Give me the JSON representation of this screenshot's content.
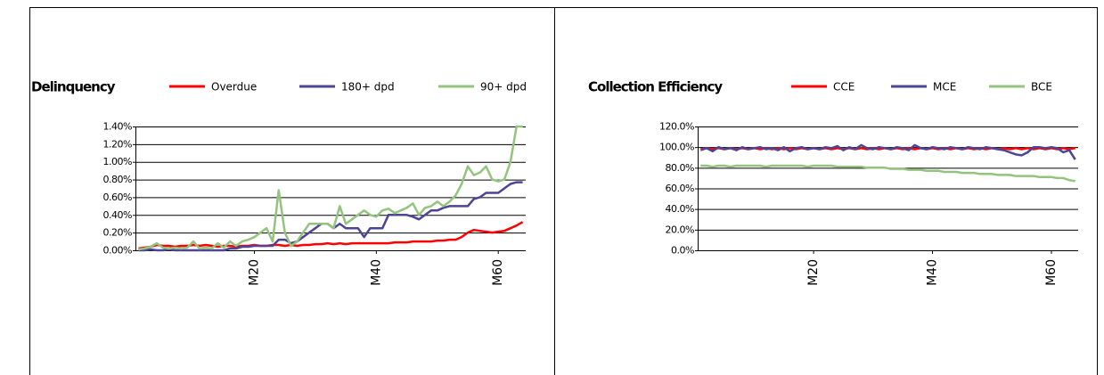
{
  "chart_data": [
    {
      "type": "line",
      "title": "Delinquency",
      "categories": [
        null,
        null,
        null,
        null,
        null,
        null,
        null,
        null,
        null,
        null,
        null,
        null,
        null,
        null,
        null,
        null,
        null,
        null,
        null,
        "M20",
        null,
        null,
        null,
        null,
        null,
        null,
        null,
        null,
        null,
        null,
        null,
        null,
        null,
        null,
        null,
        null,
        null,
        null,
        null,
        "M40",
        null,
        null,
        null,
        null,
        null,
        null,
        null,
        null,
        null,
        null,
        null,
        null,
        null,
        null,
        null,
        null,
        null,
        null,
        null,
        "M60",
        null,
        null,
        null,
        null
      ],
      "series": [
        {
          "name": "Overdue",
          "color": "#ff0000",
          "values": [
            0.02,
            0.03,
            0.04,
            0.06,
            0.05,
            0.05,
            0.04,
            0.05,
            0.05,
            0.06,
            0.05,
            0.06,
            0.05,
            0.04,
            0.05,
            0.05,
            0.04,
            0.05,
            0.05,
            0.06,
            0.05,
            0.05,
            0.06,
            0.06,
            0.05,
            0.06,
            0.05,
            0.06,
            0.06,
            0.07,
            0.07,
            0.08,
            0.07,
            0.08,
            0.07,
            0.08,
            0.08,
            0.08,
            0.08,
            0.08,
            0.08,
            0.08,
            0.09,
            0.09,
            0.09,
            0.1,
            0.1,
            0.1,
            0.1,
            0.11,
            0.11,
            0.12,
            0.12,
            0.15,
            0.2,
            0.23,
            0.22,
            0.21,
            0.2,
            0.21,
            0.22,
            0.25,
            0.28,
            0.32
          ]
        },
        {
          "name": "180+ dpd",
          "color": "#4b4497",
          "values": [
            0,
            0,
            0.01,
            0,
            0,
            0.01,
            0,
            0,
            0,
            0,
            0,
            0,
            0,
            0,
            0,
            0.02,
            0.02,
            0.04,
            0.04,
            0.05,
            0.05,
            0.05,
            0.05,
            0.12,
            0.12,
            0.08,
            0.1,
            0.15,
            0.2,
            0.25,
            0.3,
            0.3,
            0.25,
            0.3,
            0.25,
            0.25,
            0.25,
            0.15,
            0.25,
            0.25,
            0.25,
            0.4,
            0.4,
            0.4,
            0.4,
            0.38,
            0.35,
            0.4,
            0.45,
            0.45,
            0.48,
            0.5,
            0.5,
            0.5,
            0.5,
            0.58,
            0.6,
            0.65,
            0.65,
            0.65,
            0.7,
            0.75,
            0.77,
            0.77
          ]
        },
        {
          "name": "90+ dpd",
          "color": "#93c47d",
          "values": [
            0.01,
            0.02,
            0.04,
            0.08,
            0.03,
            0.02,
            0.03,
            0.02,
            0.03,
            0.1,
            0.02,
            0.03,
            0.02,
            0.08,
            0.03,
            0.1,
            0.05,
            0.1,
            0.12,
            0.15,
            0.2,
            0.25,
            0.1,
            0.68,
            0.2,
            0.05,
            0.1,
            0.2,
            0.3,
            0.3,
            0.3,
            0.3,
            0.25,
            0.5,
            0.3,
            0.35,
            0.4,
            0.45,
            0.4,
            0.38,
            0.45,
            0.47,
            0.42,
            0.45,
            0.48,
            0.53,
            0.4,
            0.48,
            0.5,
            0.55,
            0.5,
            0.55,
            0.62,
            0.75,
            0.95,
            0.85,
            0.88,
            0.95,
            0.8,
            0.78,
            0.8,
            1.0,
            1.4,
            1.4
          ]
        }
      ],
      "ylim": [
        0,
        1.4
      ],
      "yticks": [
        {
          "value": 0,
          "label": "0.00%"
        },
        {
          "value": 0.2,
          "label": "0.20%"
        },
        {
          "value": 0.4,
          "label": "0.40%"
        },
        {
          "value": 0.6,
          "label": "0.60%"
        },
        {
          "value": 0.8,
          "label": "0.80%"
        },
        {
          "value": 1.0,
          "label": "1.00%"
        },
        {
          "value": 1.2,
          "label": "1.20%"
        },
        {
          "value": 1.4,
          "label": "1.40%"
        }
      ],
      "grid": true,
      "legend": "top"
    },
    {
      "type": "line",
      "title": "Collection Efficiency",
      "categories": [
        null,
        null,
        null,
        null,
        null,
        null,
        null,
        null,
        null,
        null,
        null,
        null,
        null,
        null,
        null,
        null,
        null,
        null,
        null,
        "M20",
        null,
        null,
        null,
        null,
        null,
        null,
        null,
        null,
        null,
        null,
        null,
        null,
        null,
        null,
        null,
        null,
        null,
        null,
        null,
        "M40",
        null,
        null,
        null,
        null,
        null,
        null,
        null,
        null,
        null,
        null,
        null,
        null,
        null,
        null,
        null,
        null,
        null,
        null,
        null,
        "M60",
        null,
        null,
        null,
        null
      ],
      "series": [
        {
          "name": "CCE",
          "color": "#ff0000",
          "values": [
            98,
            99,
            98,
            99,
            98,
            99,
            98,
            99,
            98,
            99,
            98,
            99,
            98,
            99,
            98,
            99,
            98,
            99,
            98,
            99,
            98,
            99,
            98,
            99,
            98,
            99,
            98,
            99,
            98,
            99,
            98,
            99,
            98,
            99,
            98,
            99,
            98,
            99,
            98,
            99,
            98,
            99,
            98,
            99,
            98,
            99,
            98,
            99,
            98,
            99,
            98,
            99,
            98,
            99,
            98,
            99,
            98,
            99,
            98,
            99,
            98,
            99,
            98,
            99
          ]
        },
        {
          "name": "MCE",
          "color": "#4b4497",
          "values": [
            97,
            99,
            96,
            100,
            98,
            99,
            97,
            100,
            98,
            99,
            100,
            98,
            99,
            97,
            100,
            96,
            99,
            100,
            98,
            99,
            98,
            100,
            99,
            101,
            97,
            100,
            98,
            102,
            99,
            98,
            100,
            99,
            98,
            100,
            99,
            97,
            102,
            99,
            98,
            100,
            99,
            98,
            100,
            99,
            98,
            100,
            99,
            98,
            100,
            99,
            98,
            97,
            95,
            93,
            92,
            95,
            100,
            100,
            99,
            100,
            99,
            95,
            97,
            88
          ]
        },
        {
          "name": "BCE",
          "color": "#93c47d",
          "values": [
            82,
            82,
            81,
            82,
            82,
            81,
            82,
            82,
            82,
            82,
            82,
            81,
            82,
            82,
            82,
            82,
            82,
            82,
            81,
            82,
            82,
            82,
            82,
            81,
            81,
            81,
            81,
            81,
            80,
            80,
            80,
            80,
            79,
            79,
            79,
            78,
            78,
            78,
            77,
            77,
            77,
            76,
            76,
            76,
            75,
            75,
            75,
            74,
            74,
            74,
            73,
            73,
            73,
            72,
            72,
            72,
            72,
            71,
            71,
            71,
            70,
            70,
            68,
            67
          ]
        }
      ],
      "ylim": [
        0,
        120
      ],
      "yticks": [
        {
          "value": 0,
          "label": "0.0%"
        },
        {
          "value": 20,
          "label": "20.0%"
        },
        {
          "value": 40,
          "label": "40.0%"
        },
        {
          "value": 60,
          "label": "60.0%"
        },
        {
          "value": 80,
          "label": "80.0%"
        },
        {
          "value": 100,
          "label": "100.0%"
        },
        {
          "value": 120,
          "label": "120.0%"
        }
      ],
      "grid": true,
      "legend": "top"
    }
  ]
}
